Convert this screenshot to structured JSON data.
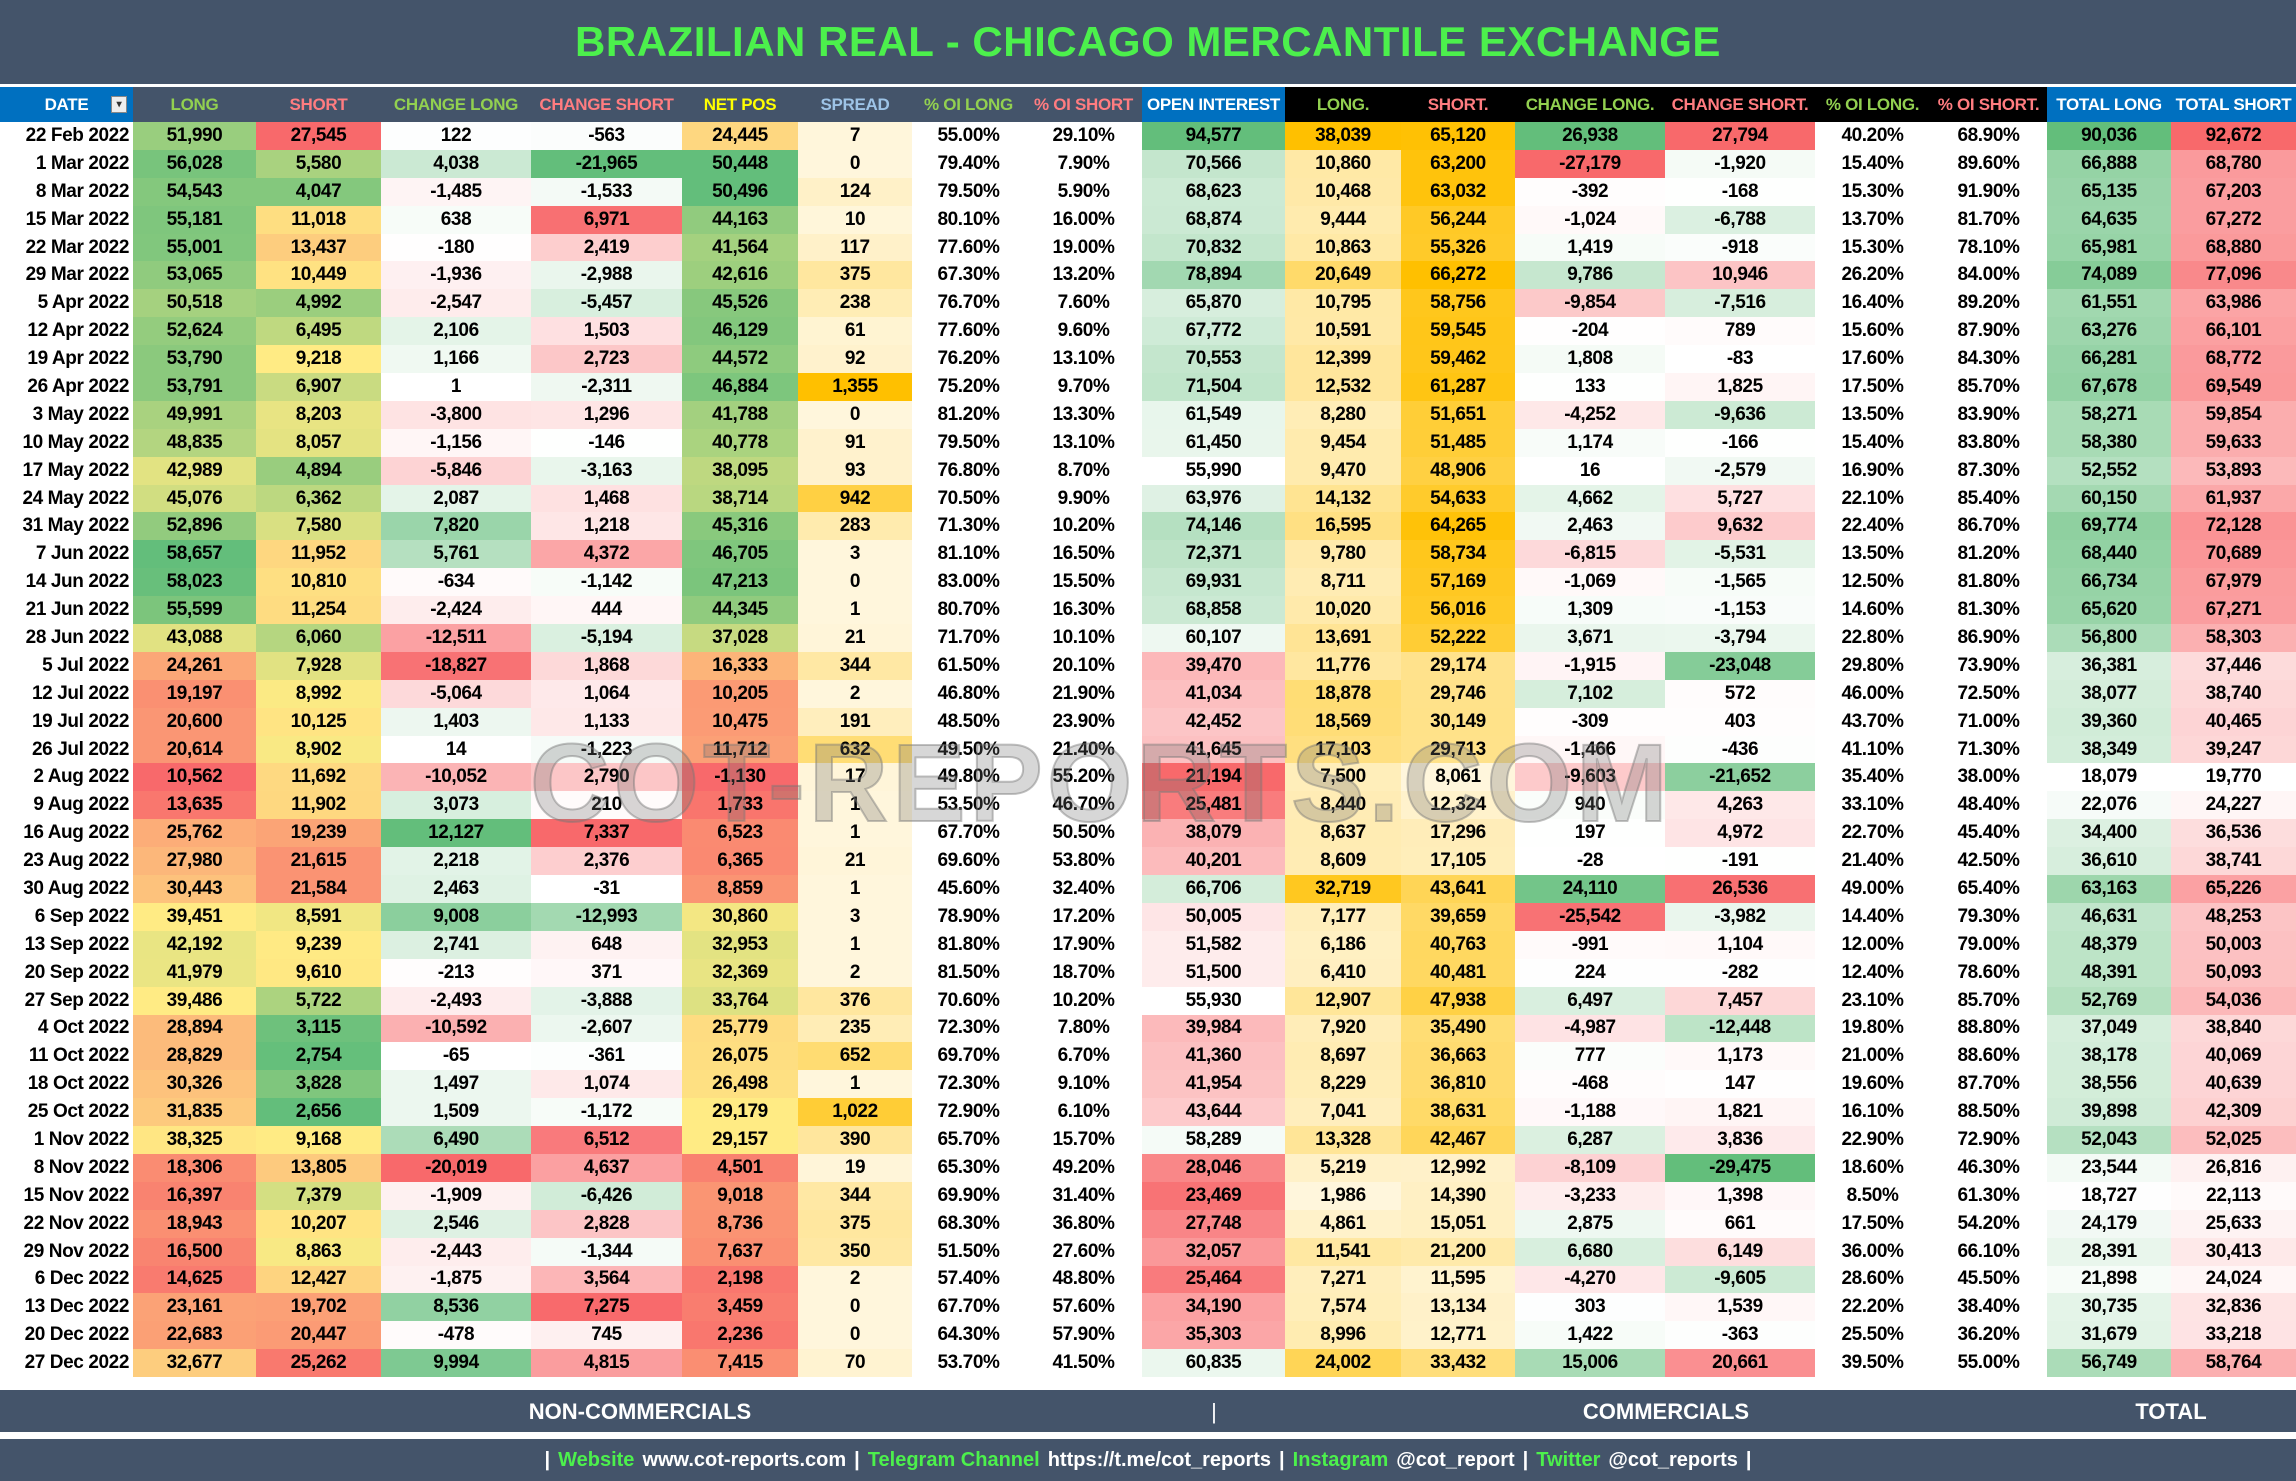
{
  "title": "BRAZILIAN REAL - CHICAGO MERCANTILE EXCHANGE",
  "watermark": "COT-REPORTS.COM",
  "columns": [
    {
      "label": "DATE",
      "color": "#ffffff",
      "bg": "#0070c0",
      "scale": "none"
    },
    {
      "label": "LONG",
      "color": "#92d050",
      "bg": "#44546a",
      "scale": "rg"
    },
    {
      "label": "SHORT",
      "color": "#ff7c80",
      "bg": "#44546a",
      "scale": "gr"
    },
    {
      "label": "CHANGE LONG",
      "color": "#92d050",
      "bg": "#44546a",
      "scale": "div"
    },
    {
      "label": "CHANGE SHORT",
      "color": "#ff7c80",
      "bg": "#44546a",
      "scale": "divr"
    },
    {
      "label": "NET POS",
      "color": "#ffff00",
      "bg": "#44546a",
      "scale": "rg"
    },
    {
      "label": "SPREAD",
      "color": "#9dc3e6",
      "bg": "#44546a",
      "scale": "amber"
    },
    {
      "label": "% OI LONG",
      "color": "#92d050",
      "bg": "#44546a",
      "scale": "none"
    },
    {
      "label": "% OI SHORT",
      "color": "#ff7c80",
      "bg": "#44546a",
      "scale": "none"
    },
    {
      "label": "OPEN INTEREST",
      "color": "#ffffff",
      "bg": "#0070c0",
      "scale": "rwg"
    },
    {
      "label": "LONG.",
      "color": "#92d050",
      "bg": "#000000",
      "scale": "amber"
    },
    {
      "label": "SHORT.",
      "color": "#ff7c80",
      "bg": "#000000",
      "scale": "amber"
    },
    {
      "label": "CHANGE LONG.",
      "color": "#92d050",
      "bg": "#000000",
      "scale": "div"
    },
    {
      "label": "CHANGE SHORT.",
      "color": "#ff7c80",
      "bg": "#000000",
      "scale": "divr"
    },
    {
      "label": "% OI LONG.",
      "color": "#92d050",
      "bg": "#000000",
      "scale": "none"
    },
    {
      "label": "% OI SHORT.",
      "color": "#ff7c80",
      "bg": "#000000",
      "scale": "none"
    },
    {
      "label": "TOTAL LONG",
      "color": "#ffffff",
      "bg": "#0070c0",
      "scale": "wg"
    },
    {
      "label": "TOTAL SHORT",
      "color": "#ffffff",
      "bg": "#0070c0",
      "scale": "wr"
    }
  ],
  "colors": {
    "red": "#f8696b",
    "yellow": "#ffeb84",
    "green": "#63be7b",
    "white": "#ffffff",
    "amber": "#ffc000",
    "amber_low": "#fff6dc"
  },
  "rows": [
    [
      "22 Feb 2022",
      "51,990",
      "27,545",
      "122",
      "-563",
      "24,445",
      "7",
      "55.00%",
      "29.10%",
      "94,577",
      "38,039",
      "65,120",
      "26,938",
      "27,794",
      "40.20%",
      "68.90%",
      "90,036",
      "92,672"
    ],
    [
      "1 Mar 2022",
      "56,028",
      "5,580",
      "4,038",
      "-21,965",
      "50,448",
      "0",
      "79.40%",
      "7.90%",
      "70,566",
      "10,860",
      "63,200",
      "-27,179",
      "-1,920",
      "15.40%",
      "89.60%",
      "66,888",
      "68,780"
    ],
    [
      "8 Mar 2022",
      "54,543",
      "4,047",
      "-1,485",
      "-1,533",
      "50,496",
      "124",
      "79.50%",
      "5.90%",
      "68,623",
      "10,468",
      "63,032",
      "-392",
      "-168",
      "15.30%",
      "91.90%",
      "65,135",
      "67,203"
    ],
    [
      "15 Mar 2022",
      "55,181",
      "11,018",
      "638",
      "6,971",
      "44,163",
      "10",
      "80.10%",
      "16.00%",
      "68,874",
      "9,444",
      "56,244",
      "-1,024",
      "-6,788",
      "13.70%",
      "81.70%",
      "64,635",
      "67,272"
    ],
    [
      "22 Mar 2022",
      "55,001",
      "13,437",
      "-180",
      "2,419",
      "41,564",
      "117",
      "77.60%",
      "19.00%",
      "70,832",
      "10,863",
      "55,326",
      "1,419",
      "-918",
      "15.30%",
      "78.10%",
      "65,981",
      "68,880"
    ],
    [
      "29 Mar 2022",
      "53,065",
      "10,449",
      "-1,936",
      "-2,988",
      "42,616",
      "375",
      "67.30%",
      "13.20%",
      "78,894",
      "20,649",
      "66,272",
      "9,786",
      "10,946",
      "26.20%",
      "84.00%",
      "74,089",
      "77,096"
    ],
    [
      "5 Apr 2022",
      "50,518",
      "4,992",
      "-2,547",
      "-5,457",
      "45,526",
      "238",
      "76.70%",
      "7.60%",
      "65,870",
      "10,795",
      "58,756",
      "-9,854",
      "-7,516",
      "16.40%",
      "89.20%",
      "61,551",
      "63,986"
    ],
    [
      "12 Apr 2022",
      "52,624",
      "6,495",
      "2,106",
      "1,503",
      "46,129",
      "61",
      "77.60%",
      "9.60%",
      "67,772",
      "10,591",
      "59,545",
      "-204",
      "789",
      "15.60%",
      "87.90%",
      "63,276",
      "66,101"
    ],
    [
      "19 Apr 2022",
      "53,790",
      "9,218",
      "1,166",
      "2,723",
      "44,572",
      "92",
      "76.20%",
      "13.10%",
      "70,553",
      "12,399",
      "59,462",
      "1,808",
      "-83",
      "17.60%",
      "84.30%",
      "66,281",
      "68,772"
    ],
    [
      "26 Apr 2022",
      "53,791",
      "6,907",
      "1",
      "-2,311",
      "46,884",
      "1,355",
      "75.20%",
      "9.70%",
      "71,504",
      "12,532",
      "61,287",
      "133",
      "1,825",
      "17.50%",
      "85.70%",
      "67,678",
      "69,549"
    ],
    [
      "3 May 2022",
      "49,991",
      "8,203",
      "-3,800",
      "1,296",
      "41,788",
      "0",
      "81.20%",
      "13.30%",
      "61,549",
      "8,280",
      "51,651",
      "-4,252",
      "-9,636",
      "13.50%",
      "83.90%",
      "58,271",
      "59,854"
    ],
    [
      "10 May 2022",
      "48,835",
      "8,057",
      "-1,156",
      "-146",
      "40,778",
      "91",
      "79.50%",
      "13.10%",
      "61,450",
      "9,454",
      "51,485",
      "1,174",
      "-166",
      "15.40%",
      "83.80%",
      "58,380",
      "59,633"
    ],
    [
      "17 May 2022",
      "42,989",
      "4,894",
      "-5,846",
      "-3,163",
      "38,095",
      "93",
      "76.80%",
      "8.70%",
      "55,990",
      "9,470",
      "48,906",
      "16",
      "-2,579",
      "16.90%",
      "87.30%",
      "52,552",
      "53,893"
    ],
    [
      "24 May 2022",
      "45,076",
      "6,362",
      "2,087",
      "1,468",
      "38,714",
      "942",
      "70.50%",
      "9.90%",
      "63,976",
      "14,132",
      "54,633",
      "4,662",
      "5,727",
      "22.10%",
      "85.40%",
      "60,150",
      "61,937"
    ],
    [
      "31 May 2022",
      "52,896",
      "7,580",
      "7,820",
      "1,218",
      "45,316",
      "283",
      "71.30%",
      "10.20%",
      "74,146",
      "16,595",
      "64,265",
      "2,463",
      "9,632",
      "22.40%",
      "86.70%",
      "69,774",
      "72,128"
    ],
    [
      "7 Jun 2022",
      "58,657",
      "11,952",
      "5,761",
      "4,372",
      "46,705",
      "3",
      "81.10%",
      "16.50%",
      "72,371",
      "9,780",
      "58,734",
      "-6,815",
      "-5,531",
      "13.50%",
      "81.20%",
      "68,440",
      "70,689"
    ],
    [
      "14 Jun 2022",
      "58,023",
      "10,810",
      "-634",
      "-1,142",
      "47,213",
      "0",
      "83.00%",
      "15.50%",
      "69,931",
      "8,711",
      "57,169",
      "-1,069",
      "-1,565",
      "12.50%",
      "81.80%",
      "66,734",
      "67,979"
    ],
    [
      "21 Jun 2022",
      "55,599",
      "11,254",
      "-2,424",
      "444",
      "44,345",
      "1",
      "80.70%",
      "16.30%",
      "68,858",
      "10,020",
      "56,016",
      "1,309",
      "-1,153",
      "14.60%",
      "81.30%",
      "65,620",
      "67,271"
    ],
    [
      "28 Jun 2022",
      "43,088",
      "6,060",
      "-12,511",
      "-5,194",
      "37,028",
      "21",
      "71.70%",
      "10.10%",
      "60,107",
      "13,691",
      "52,222",
      "3,671",
      "-3,794",
      "22.80%",
      "86.90%",
      "56,800",
      "58,303"
    ],
    [
      "5 Jul 2022",
      "24,261",
      "7,928",
      "-18,827",
      "1,868",
      "16,333",
      "344",
      "61.50%",
      "20.10%",
      "39,470",
      "11,776",
      "29,174",
      "-1,915",
      "-23,048",
      "29.80%",
      "73.90%",
      "36,381",
      "37,446"
    ],
    [
      "12 Jul 2022",
      "19,197",
      "8,992",
      "-5,064",
      "1,064",
      "10,205",
      "2",
      "46.80%",
      "21.90%",
      "41,034",
      "18,878",
      "29,746",
      "7,102",
      "572",
      "46.00%",
      "72.50%",
      "38,077",
      "38,740"
    ],
    [
      "19 Jul 2022",
      "20,600",
      "10,125",
      "1,403",
      "1,133",
      "10,475",
      "191",
      "48.50%",
      "23.90%",
      "42,452",
      "18,569",
      "30,149",
      "-309",
      "403",
      "43.70%",
      "71.00%",
      "39,360",
      "40,465"
    ],
    [
      "26 Jul 2022",
      "20,614",
      "8,902",
      "14",
      "-1,223",
      "11,712",
      "632",
      "49.50%",
      "21.40%",
      "41,645",
      "17,103",
      "29,713",
      "-1,466",
      "-436",
      "41.10%",
      "71.30%",
      "38,349",
      "39,247"
    ],
    [
      "2 Aug 2022",
      "10,562",
      "11,692",
      "-10,052",
      "2,790",
      "-1,130",
      "17",
      "49.80%",
      "55.20%",
      "21,194",
      "7,500",
      "8,061",
      "-9,603",
      "-21,652",
      "35.40%",
      "38.00%",
      "18,079",
      "19,770"
    ],
    [
      "9 Aug 2022",
      "13,635",
      "11,902",
      "3,073",
      "210",
      "1,733",
      "1",
      "53.50%",
      "46.70%",
      "25,481",
      "8,440",
      "12,324",
      "940",
      "4,263",
      "33.10%",
      "48.40%",
      "22,076",
      "24,227"
    ],
    [
      "16 Aug 2022",
      "25,762",
      "19,239",
      "12,127",
      "7,337",
      "6,523",
      "1",
      "67.70%",
      "50.50%",
      "38,079",
      "8,637",
      "17,296",
      "197",
      "4,972",
      "22.70%",
      "45.40%",
      "34,400",
      "36,536"
    ],
    [
      "23 Aug 2022",
      "27,980",
      "21,615",
      "2,218",
      "2,376",
      "6,365",
      "21",
      "69.60%",
      "53.80%",
      "40,201",
      "8,609",
      "17,105",
      "-28",
      "-191",
      "21.40%",
      "42.50%",
      "36,610",
      "38,741"
    ],
    [
      "30 Aug 2022",
      "30,443",
      "21,584",
      "2,463",
      "-31",
      "8,859",
      "1",
      "45.60%",
      "32.40%",
      "66,706",
      "32,719",
      "43,641",
      "24,110",
      "26,536",
      "49.00%",
      "65.40%",
      "63,163",
      "65,226"
    ],
    [
      "6 Sep 2022",
      "39,451",
      "8,591",
      "9,008",
      "-12,993",
      "30,860",
      "3",
      "78.90%",
      "17.20%",
      "50,005",
      "7,177",
      "39,659",
      "-25,542",
      "-3,982",
      "14.40%",
      "79.30%",
      "46,631",
      "48,253"
    ],
    [
      "13 Sep 2022",
      "42,192",
      "9,239",
      "2,741",
      "648",
      "32,953",
      "1",
      "81.80%",
      "17.90%",
      "51,582",
      "6,186",
      "40,763",
      "-991",
      "1,104",
      "12.00%",
      "79.00%",
      "48,379",
      "50,003"
    ],
    [
      "20 Sep 2022",
      "41,979",
      "9,610",
      "-213",
      "371",
      "32,369",
      "2",
      "81.50%",
      "18.70%",
      "51,500",
      "6,410",
      "40,481",
      "224",
      "-282",
      "12.40%",
      "78.60%",
      "48,391",
      "50,093"
    ],
    [
      "27 Sep 2022",
      "39,486",
      "5,722",
      "-2,493",
      "-3,888",
      "33,764",
      "376",
      "70.60%",
      "10.20%",
      "55,930",
      "12,907",
      "47,938",
      "6,497",
      "7,457",
      "23.10%",
      "85.70%",
      "52,769",
      "54,036"
    ],
    [
      "4 Oct 2022",
      "28,894",
      "3,115",
      "-10,592",
      "-2,607",
      "25,779",
      "235",
      "72.30%",
      "7.80%",
      "39,984",
      "7,920",
      "35,490",
      "-4,987",
      "-12,448",
      "19.80%",
      "88.80%",
      "37,049",
      "38,840"
    ],
    [
      "11 Oct 2022",
      "28,829",
      "2,754",
      "-65",
      "-361",
      "26,075",
      "652",
      "69.70%",
      "6.70%",
      "41,360",
      "8,697",
      "36,663",
      "777",
      "1,173",
      "21.00%",
      "88.60%",
      "38,178",
      "40,069"
    ],
    [
      "18 Oct 2022",
      "30,326",
      "3,828",
      "1,497",
      "1,074",
      "26,498",
      "1",
      "72.30%",
      "9.10%",
      "41,954",
      "8,229",
      "36,810",
      "-468",
      "147",
      "19.60%",
      "87.70%",
      "38,556",
      "40,639"
    ],
    [
      "25 Oct 2022",
      "31,835",
      "2,656",
      "1,509",
      "-1,172",
      "29,179",
      "1,022",
      "72.90%",
      "6.10%",
      "43,644",
      "7,041",
      "38,631",
      "-1,188",
      "1,821",
      "16.10%",
      "88.50%",
      "39,898",
      "42,309"
    ],
    [
      "1 Nov 2022",
      "38,325",
      "9,168",
      "6,490",
      "6,512",
      "29,157",
      "390",
      "65.70%",
      "15.70%",
      "58,289",
      "13,328",
      "42,467",
      "6,287",
      "3,836",
      "22.90%",
      "72.90%",
      "52,043",
      "52,025"
    ],
    [
      "8 Nov 2022",
      "18,306",
      "13,805",
      "-20,019",
      "4,637",
      "4,501",
      "19",
      "65.30%",
      "49.20%",
      "28,046",
      "5,219",
      "12,992",
      "-8,109",
      "-29,475",
      "18.60%",
      "46.30%",
      "23,544",
      "26,816"
    ],
    [
      "15 Nov 2022",
      "16,397",
      "7,379",
      "-1,909",
      "-6,426",
      "9,018",
      "344",
      "69.90%",
      "31.40%",
      "23,469",
      "1,986",
      "14,390",
      "-3,233",
      "1,398",
      "8.50%",
      "61.30%",
      "18,727",
      "22,113"
    ],
    [
      "22 Nov 2022",
      "18,943",
      "10,207",
      "2,546",
      "2,828",
      "8,736",
      "375",
      "68.30%",
      "36.80%",
      "27,748",
      "4,861",
      "15,051",
      "2,875",
      "661",
      "17.50%",
      "54.20%",
      "24,179",
      "25,633"
    ],
    [
      "29 Nov 2022",
      "16,500",
      "8,863",
      "-2,443",
      "-1,344",
      "7,637",
      "350",
      "51.50%",
      "27.60%",
      "32,057",
      "11,541",
      "21,200",
      "6,680",
      "6,149",
      "36.00%",
      "66.10%",
      "28,391",
      "30,413"
    ],
    [
      "6 Dec 2022",
      "14,625",
      "12,427",
      "-1,875",
      "3,564",
      "2,198",
      "2",
      "57.40%",
      "48.80%",
      "25,464",
      "7,271",
      "11,595",
      "-4,270",
      "-9,605",
      "28.60%",
      "45.50%",
      "21,898",
      "24,024"
    ],
    [
      "13 Dec 2022",
      "23,161",
      "19,702",
      "8,536",
      "7,275",
      "3,459",
      "0",
      "67.70%",
      "57.60%",
      "34,190",
      "7,574",
      "13,134",
      "303",
      "1,539",
      "22.20%",
      "38.40%",
      "30,735",
      "32,836"
    ],
    [
      "20 Dec 2022",
      "22,683",
      "20,447",
      "-478",
      "745",
      "2,236",
      "0",
      "64.30%",
      "57.90%",
      "35,303",
      "8,996",
      "12,771",
      "1,422",
      "-363",
      "25.50%",
      "36.20%",
      "31,679",
      "33,218"
    ],
    [
      "27 Dec 2022",
      "32,677",
      "25,262",
      "9,994",
      "4,815",
      "7,415",
      "70",
      "53.70%",
      "41.50%",
      "60,835",
      "24,002",
      "33,432",
      "15,006",
      "20,661",
      "39.50%",
      "55.00%",
      "56,749",
      "58,764"
    ]
  ],
  "sections": {
    "non_commercials": "NON-COMMERCIALS",
    "divider": "|",
    "commercials": "COMMERCIALS",
    "total": "TOTAL"
  },
  "footer": {
    "sep": "|",
    "website_label": "Website",
    "website": "www.cot-reports.com",
    "telegram_label": "Telegram Channel",
    "telegram": "https://t.me/cot_reports",
    "instagram_label": "Instagram",
    "instagram": "@cot_report",
    "twitter_label": "Twitter",
    "twitter": "@cot_reports"
  }
}
